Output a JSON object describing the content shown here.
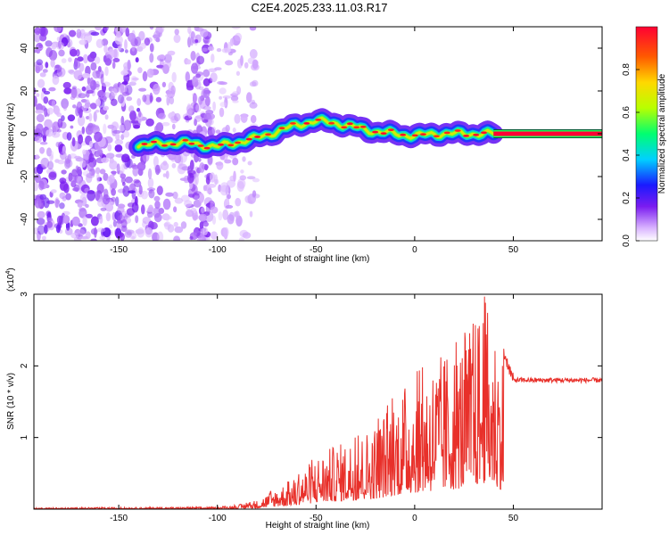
{
  "title": "C2E4.2025.233.11.03.R17",
  "chart_data": [
    {
      "type": "heatmap",
      "xlabel": "Height of straight line (km)",
      "ylabel": "Frequency (Hz)",
      "xlim": [
        -193,
        95
      ],
      "ylim": [
        -50,
        50
      ],
      "xticks": [
        -150,
        -100,
        -50,
        0,
        50
      ],
      "yticks": [
        -40,
        -20,
        0,
        20,
        40
      ],
      "ridge_x": [
        -140,
        -130,
        -120,
        -110,
        -100,
        -90,
        -80,
        -70,
        -60,
        -50,
        -40,
        -30,
        -20,
        -10,
        0,
        10,
        20,
        30,
        40,
        50,
        95
      ],
      "ridge_y": [
        -5,
        -5,
        -4,
        -5,
        -6,
        -4,
        -2,
        1,
        4,
        6,
        5,
        3,
        1,
        0,
        -1,
        0,
        0,
        0,
        0,
        0,
        0
      ],
      "colorbar": {
        "label": "Normalized spectral amplitude",
        "range": [
          0,
          1
        ],
        "ticks": [
          "0.0",
          "0.2",
          "0.4",
          "0.6",
          "0.8"
        ],
        "tick_values": [
          0,
          0.2,
          0.4,
          0.6,
          0.8
        ]
      }
    },
    {
      "type": "line",
      "xlabel": "Height of straight line (km)",
      "ylabel": "SNR (10 * v/v)",
      "scale_label": "(x10",
      "scale_exp": "4",
      "scale_close": ")",
      "xlim": [
        -193,
        95
      ],
      "ylim": [
        0,
        3
      ],
      "xticks": [
        -150,
        -100,
        -50,
        0,
        50
      ],
      "yticks": [
        1,
        2,
        3
      ],
      "color": "#e8302a",
      "envelope": {
        "x": [
          -193,
          -100,
          -90,
          -80,
          -70,
          -60,
          -50,
          -40,
          -30,
          -20,
          -10,
          0,
          10,
          20,
          30,
          35,
          40,
          45,
          50,
          60,
          70,
          80,
          95
        ],
        "y": [
          0.02,
          0.03,
          0.06,
          0.12,
          0.3,
          0.45,
          0.75,
          0.9,
          1.0,
          1.2,
          1.6,
          1.9,
          2.1,
          2.3,
          2.6,
          3.0,
          2.6,
          2.2,
          1.8,
          1.8,
          1.8,
          1.8,
          1.8
        ]
      }
    }
  ]
}
